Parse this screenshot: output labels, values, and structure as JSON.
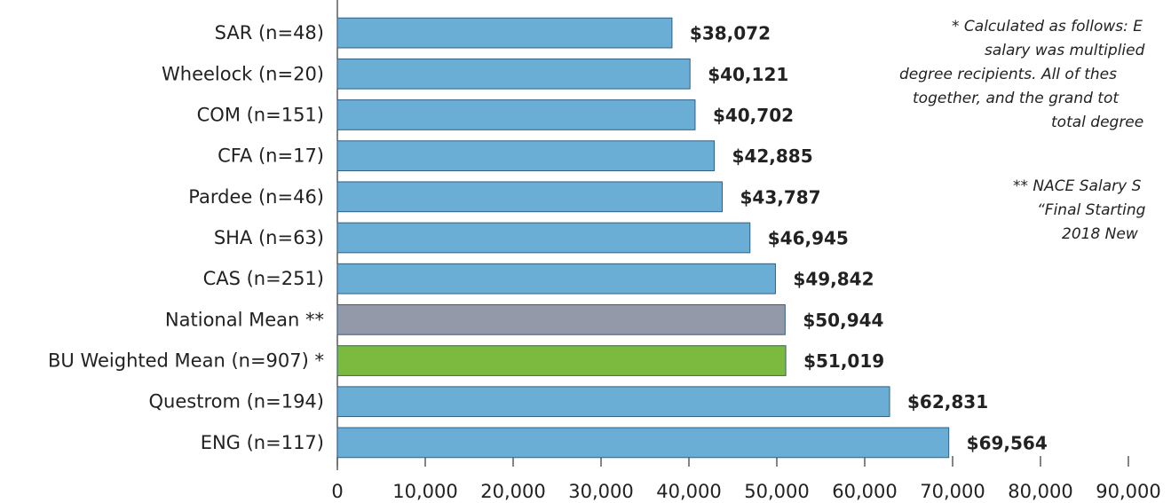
{
  "chart_data": {
    "type": "bar",
    "orientation": "horizontal",
    "categories": [
      "SAR (n=48)",
      "Wheelock (n=20)",
      "COM (n=151)",
      "CFA (n=17)",
      "Pardee (n=46)",
      "SHA (n=63)",
      "CAS (n=251)",
      "National Mean **",
      "BU Weighted Mean (n=907) *",
      "Questrom (n=194)",
      "ENG (n=117)"
    ],
    "values": [
      38072,
      40121,
      40702,
      42885,
      43787,
      46945,
      49842,
      50944,
      51019,
      62831,
      69564
    ],
    "value_labels": [
      "$38,072",
      "$40,121",
      "$40,702",
      "$42,885",
      "$43,787",
      "$46,945",
      "$49,842",
      "$50,944",
      "$51,019",
      "$62,831",
      "$69,564"
    ],
    "colors": [
      "#6aaed6",
      "#6aaed6",
      "#6aaed6",
      "#6aaed6",
      "#6aaed6",
      "#6aaed6",
      "#6aaed6",
      "#9399a8",
      "#7cba3f",
      "#6aaed6",
      "#6aaed6"
    ],
    "xlim": [
      0,
      90000
    ],
    "xticks": [
      0,
      {
        "value": 10000,
        "label": "10,000"
      },
      {
        "value": 20000,
        "label": "20,000"
      },
      {
        "value": 30000,
        "label": "30,000"
      },
      {
        "value": 40000,
        "label": "40,000"
      },
      {
        "value": 50000,
        "label": "50,000"
      },
      {
        "value": 60000,
        "label": "60,000"
      },
      {
        "value": 70000,
        "label": "70,000"
      },
      {
        "value": 80000,
        "label": "80,000"
      },
      {
        "value": 90000,
        "label": "90,000"
      }
    ],
    "annotations": [
      "* Calculated as follows: E",
      "salary was multiplied",
      "degree recipients. All of thes",
      "together, and the grand tot",
      "total degree",
      "** NACE Salary S",
      "“Final Starting",
      "2018 New"
    ]
  }
}
